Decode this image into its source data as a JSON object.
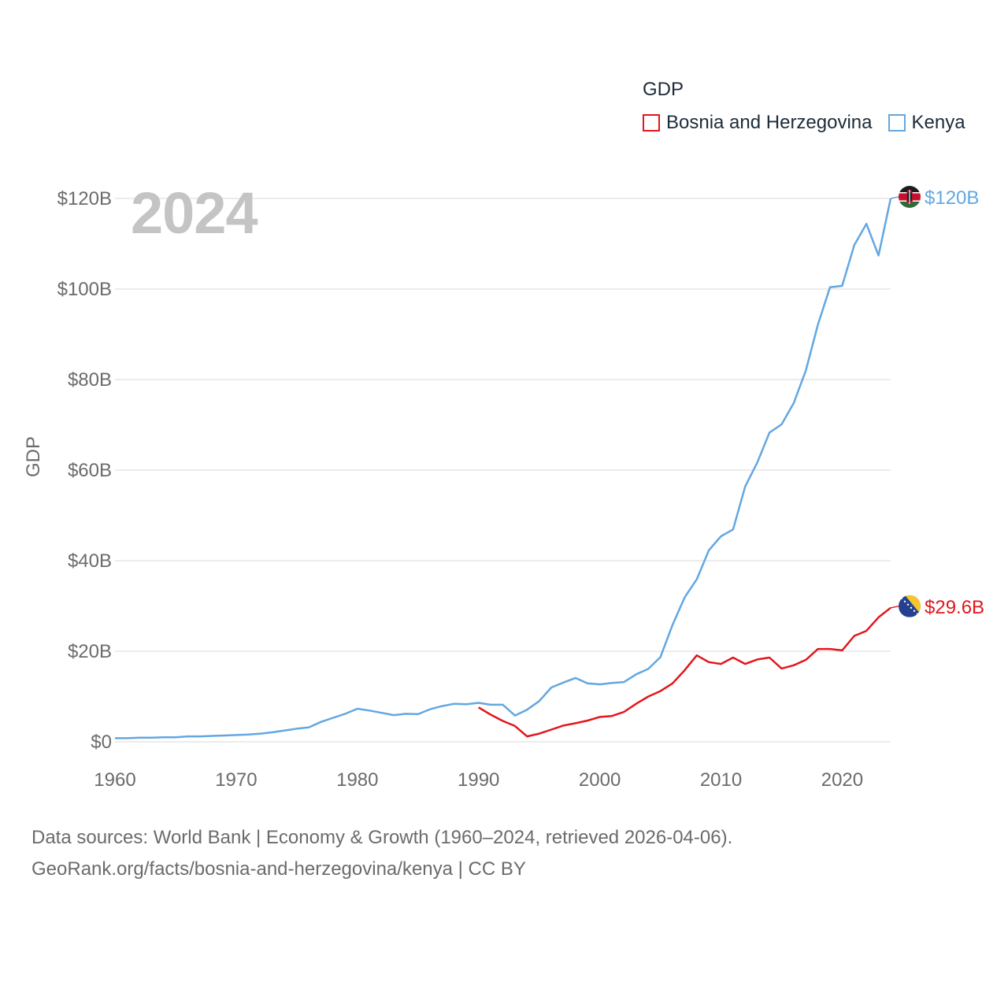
{
  "legend": {
    "title": "GDP"
  },
  "year_label": "2024",
  "footer": {
    "line1": "Data sources: World Bank | Economy & Growth (1960–2024, retrieved 2026-04-06).",
    "line2": "GeoRank.org/facts/bosnia-and-herzegovina/kenya | CC BY"
  },
  "colors": {
    "bosnia": "#e3161c",
    "kenya": "#63a7e2",
    "grid": "#e5e5e5",
    "axis_text": "#6b6b6b"
  },
  "chart_data": {
    "type": "line",
    "title": "GDP",
    "xlabel": "",
    "ylabel": "GDP",
    "xlim": [
      1960,
      2024
    ],
    "ylim": [
      0,
      120
    ],
    "x_ticks": [
      1960,
      1970,
      1980,
      1990,
      2000,
      2010,
      2020
    ],
    "y_ticks": [
      0,
      20,
      40,
      60,
      80,
      100,
      120
    ],
    "y_tick_labels": [
      "$0",
      "$20B",
      "$40B",
      "$60B",
      "$80B",
      "$100B",
      "$120B"
    ],
    "unit": "USD billions",
    "series": [
      {
        "name": "Bosnia and Herzegovina",
        "color": "#e3161c",
        "end_label": "$29.6B",
        "flag": "bosnia",
        "x": [
          1990,
          1991,
          1992,
          1993,
          1994,
          1995,
          1996,
          1997,
          1998,
          1999,
          2000,
          2001,
          2002,
          2003,
          2004,
          2005,
          2006,
          2007,
          2008,
          2009,
          2010,
          2011,
          2012,
          2013,
          2014,
          2015,
          2016,
          2017,
          2018,
          2019,
          2020,
          2021,
          2022,
          2023,
          2024
        ],
        "values": [
          7.6,
          6.0,
          4.6,
          3.5,
          1.2,
          1.8,
          2.7,
          3.6,
          4.1,
          4.7,
          5.5,
          5.7,
          6.6,
          8.4,
          10.0,
          11.2,
          12.9,
          15.8,
          19.1,
          17.6,
          17.2,
          18.6,
          17.2,
          18.2,
          18.6,
          16.2,
          16.9,
          18.1,
          20.5,
          20.5,
          20.2,
          23.4,
          24.5,
          27.5,
          29.6
        ]
      },
      {
        "name": "Kenya",
        "color": "#63a7e2",
        "end_label": "$120B",
        "flag": "kenya",
        "x": [
          1960,
          1961,
          1962,
          1963,
          1964,
          1965,
          1966,
          1967,
          1968,
          1969,
          1970,
          1971,
          1972,
          1973,
          1974,
          1975,
          1976,
          1977,
          1978,
          1979,
          1980,
          1981,
          1982,
          1983,
          1984,
          1985,
          1986,
          1987,
          1988,
          1989,
          1990,
          1991,
          1992,
          1993,
          1994,
          1995,
          1996,
          1997,
          1998,
          1999,
          2000,
          2001,
          2002,
          2003,
          2004,
          2005,
          2006,
          2007,
          2008,
          2009,
          2010,
          2011,
          2012,
          2013,
          2014,
          2015,
          2016,
          2017,
          2018,
          2019,
          2020,
          2021,
          2022,
          2023,
          2024
        ],
        "values": [
          0.8,
          0.8,
          0.9,
          0.9,
          1.0,
          1.0,
          1.2,
          1.2,
          1.3,
          1.4,
          1.5,
          1.6,
          1.8,
          2.1,
          2.5,
          2.9,
          3.2,
          4.4,
          5.3,
          6.2,
          7.3,
          6.9,
          6.4,
          5.9,
          6.2,
          6.1,
          7.2,
          7.9,
          8.4,
          8.3,
          8.6,
          8.2,
          8.2,
          5.8,
          7.1,
          9.0,
          12.0,
          13.1,
          14.1,
          12.9,
          12.7,
          13.0,
          13.2,
          14.9,
          16.1,
          18.7,
          25.8,
          31.9,
          35.9,
          42.3,
          45.4,
          46.9,
          56.4,
          61.7,
          68.3,
          70.1,
          74.8,
          82.0,
          92.2,
          100.4,
          100.7,
          109.7,
          114.4,
          107.4,
          120.0
        ]
      }
    ]
  }
}
